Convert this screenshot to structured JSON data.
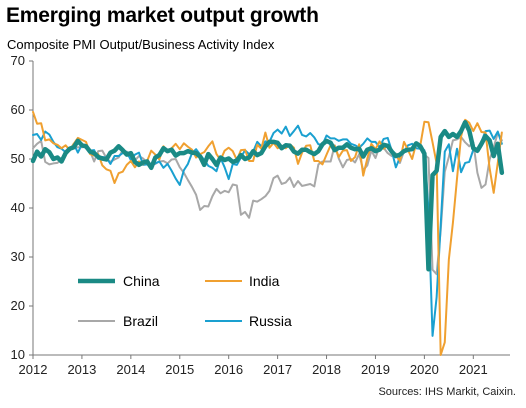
{
  "title": "Emerging market output growth",
  "subtitle": "Composite PMI Output/Business  Activity Index",
  "source": "Sources: IHS Markit, Caixin.",
  "chart_data": {
    "type": "line",
    "ylim": [
      10,
      70
    ],
    "yticks": [
      10,
      20,
      30,
      40,
      50,
      60,
      70
    ],
    "xlim": [
      2012,
      2021.75
    ],
    "xticks": [
      "2012",
      "2013",
      "2014",
      "2015",
      "2016",
      "2017",
      "2018",
      "2019",
      "2020",
      "2021"
    ],
    "grid": false,
    "legend": "inside-bottom-left",
    "x_start": "2012-01",
    "x_step": "monthly",
    "series": [
      {
        "name": "China",
        "color": "#1a8a85",
        "width": 4.5,
        "values": [
          49.6,
          51.5,
          50.5,
          52.0,
          51.4,
          50.0,
          50.3,
          49.5,
          51.2,
          52.1,
          52.4,
          53.7,
          52.8,
          52.6,
          51.5,
          51.2,
          50.4,
          50.1,
          49.9,
          51.3,
          51.7,
          52.6,
          51.8,
          50.9,
          51.2,
          49.4,
          48.8,
          49.3,
          49.5,
          48.2,
          50.3,
          50.8,
          52.2,
          51.6,
          51.9,
          50.7,
          51.2,
          51.2,
          51.6,
          51.3,
          51.2,
          50.5,
          48.8,
          51.0,
          50.0,
          48.8,
          50.3,
          49.8,
          50.1,
          49.4,
          49.7,
          50.8,
          50.0,
          50.3,
          51.6,
          50.8,
          51.2,
          52.6,
          53.5,
          53.5,
          53.3,
          52.2,
          52.8,
          52.7,
          51.5,
          51.1,
          51.9,
          51.9,
          51.4,
          51.0,
          51.6,
          53.0,
          53.7,
          53.3,
          51.8,
          52.3,
          52.3,
          53.0,
          52.3,
          52.0,
          52.1,
          50.5,
          51.9,
          52.2,
          51.6,
          51.9,
          52.9,
          52.7,
          51.5,
          50.6,
          50.9,
          51.6,
          51.9,
          52.0,
          53.2,
          52.6,
          51.1,
          27.5,
          46.7,
          47.6,
          54.5,
          55.7,
          54.5,
          55.1,
          54.5,
          55.7,
          57.5,
          55.8,
          52.2,
          51.7,
          53.1,
          54.7,
          53.8,
          50.6,
          53.1,
          47.2
        ]
      },
      {
        "name": "India",
        "color": "#f0a030",
        "width": 2,
        "values": [
          59.6,
          57.2,
          57.3,
          53.8,
          54.0,
          53.2,
          52.9,
          52.2,
          52.8,
          51.8,
          53.1,
          54.3,
          53.9,
          53.5,
          51.0,
          50.7,
          51.0,
          48.7,
          47.9,
          47.6,
          45.1,
          47.1,
          47.4,
          48.8,
          49.6,
          48.3,
          49.5,
          48.9,
          49.6,
          51.7,
          50.9,
          49.9,
          52.6,
          51.6,
          52.2,
          53.1,
          52.0,
          53.2,
          52.5,
          51.9,
          50.3,
          51.0,
          51.4,
          52.6,
          53.6,
          51.0,
          49.8,
          51.7,
          52.3,
          51.6,
          49.8,
          51.8,
          51.9,
          49.6,
          49.6,
          52.9,
          52.1,
          55.4,
          52.3,
          53.3,
          52.2,
          52.7,
          52.2,
          53.0,
          52.3,
          49.0,
          51.3,
          52.7,
          52.8,
          49.6,
          49.6,
          48.9,
          50.9,
          52.8,
          52.7,
          50.4,
          51.7,
          51.8,
          49.6,
          50.4,
          53.0,
          46.6,
          50.1,
          53.1,
          52.0,
          53.6,
          52.1,
          52.7,
          51.7,
          50.8,
          49.6,
          53.5,
          51.8,
          50.0,
          53.2,
          52.8,
          57.6,
          57.5,
          53.4,
          49.1,
          10.0,
          12.6,
          29.5,
          37.0,
          46.0,
          54.6,
          58.0,
          57.4,
          55.7,
          57.3,
          55.5,
          55.4,
          48.1,
          43.1,
          49.2,
          55.4
        ]
      },
      {
        "name": "Brazil",
        "color": "#a8a8a8",
        "width": 2,
        "values": [
          52.2,
          53.1,
          53.7,
          49.4,
          48.9,
          49.1,
          49.2,
          49.9,
          51.7,
          52.0,
          52.3,
          52.4,
          52.4,
          52.5,
          51.6,
          49.5,
          51.6,
          51.7,
          50.2,
          49.4,
          49.9,
          50.3,
          51.8,
          51.5,
          51.0,
          49.7,
          50.6,
          50.1,
          49.3,
          48.9,
          49.0,
          49.5,
          49.6,
          49.1,
          49.9,
          50.0,
          48.3,
          47.2,
          45.7,
          44.3,
          42.7,
          39.6,
          40.4,
          40.3,
          42.4,
          43.9,
          43.0,
          43.5,
          43.2,
          44.8,
          44.6,
          38.6,
          39.2,
          38.0,
          41.5,
          41.3,
          41.8,
          42.4,
          43.5,
          46.1,
          46.6,
          44.9,
          45.2,
          46.2,
          44.3,
          45.5,
          44.5,
          44.7,
          44.9,
          44.4,
          48.9,
          49.5,
          49.5,
          49.5,
          52.8,
          50.1,
          48.3,
          49.8,
          50.0,
          49.3,
          51.0,
          47.7,
          48.7,
          51.7,
          50.2,
          52.6,
          52.3,
          51.2,
          50.6,
          51.1,
          49.2,
          51.6,
          51.9,
          51.9,
          52.8,
          53.1,
          50.9,
          50.2,
          27.4,
          26.5,
          35.4,
          47.4,
          50.4,
          53.8,
          54.0,
          54.5,
          53.4,
          52.6,
          53.4,
          47.2,
          44.1,
          44.8,
          49.9,
          52.4,
          55.3,
          53.8
        ]
      },
      {
        "name": "Russia",
        "color": "#1aa0d0",
        "width": 2,
        "values": [
          54.9,
          55.1,
          53.9,
          55.6,
          55.0,
          53.5,
          52.4,
          52.1,
          51.4,
          51.7,
          53.1,
          51.3,
          53.0,
          52.2,
          51.7,
          51.8,
          50.0,
          50.4,
          50.3,
          49.0,
          50.6,
          50.6,
          51.2,
          51.4,
          49.8,
          50.9,
          51.3,
          48.8,
          48.9,
          48.6,
          49.1,
          49.5,
          48.2,
          49.0,
          47.6,
          46.0,
          44.7,
          47.7,
          49.0,
          51.2,
          52.0,
          50.9,
          49.8,
          48.6,
          48.2,
          47.5,
          50.2,
          48.3,
          45.9,
          49.0,
          48.8,
          50.3,
          51.8,
          51.0,
          51.5,
          53.5,
          52.6,
          53.6,
          53.5,
          55.3,
          56.0,
          55.2,
          56.6,
          54.7,
          55.7,
          56.8,
          54.9,
          54.6,
          55.3,
          54.4,
          53.0,
          52.9,
          54.8,
          54.2,
          54.2,
          53.7,
          54.0,
          54.0,
          53.1,
          52.8,
          52.3,
          53.1,
          54.2,
          53.5,
          53.5,
          52.4,
          54.1,
          54.3,
          51.7,
          48.3,
          50.3,
          51.6,
          52.8,
          53.1,
          52.2,
          52.1,
          51.8,
          39.7,
          13.9,
          21.8,
          36.5,
          51.5,
          53.0,
          47.5,
          52.1,
          47.3,
          49.2,
          49.4,
          51.9,
          51.4,
          53.6,
          55.7,
          55.8,
          54.1,
          55.6,
          53.1
        ]
      }
    ],
    "legend_order": [
      "China",
      "India",
      "Brazil",
      "Russia"
    ]
  }
}
